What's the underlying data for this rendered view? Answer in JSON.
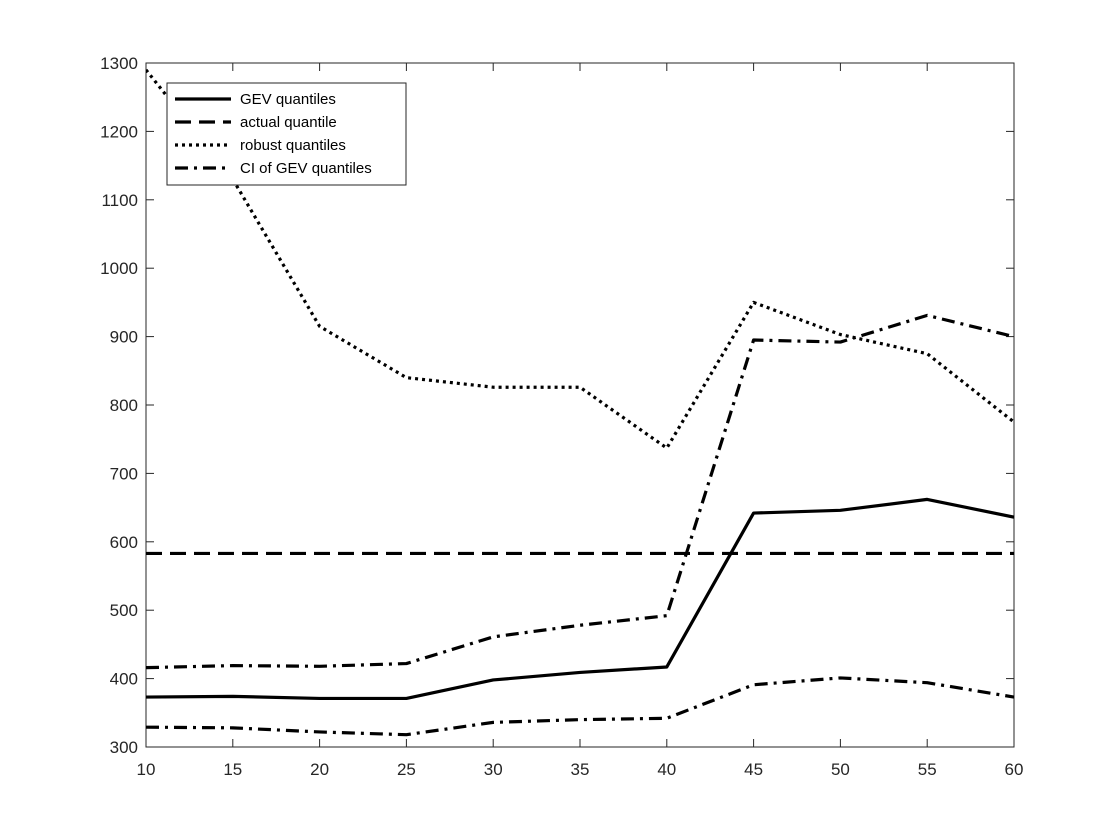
{
  "chart_data": {
    "type": "line",
    "title": "",
    "xlabel": "",
    "ylabel": "",
    "xlim": [
      10,
      60
    ],
    "ylim": [
      300,
      1300
    ],
    "xticks": [
      10,
      15,
      20,
      25,
      30,
      35,
      40,
      45,
      50,
      55,
      60
    ],
    "yticks": [
      300,
      400,
      500,
      600,
      700,
      800,
      900,
      1000,
      1100,
      1200,
      1300
    ],
    "grid": false,
    "legend_position": "top-left",
    "x": [
      10,
      15,
      20,
      25,
      30,
      35,
      40,
      45,
      50,
      55,
      60
    ],
    "series": [
      {
        "name": "GEV quantiles",
        "style": "solid",
        "color": "#000000",
        "values": [
          373,
          374,
          371,
          371,
          398,
          409,
          417,
          642,
          646,
          662,
          636
        ]
      },
      {
        "name": "actual quantile",
        "style": "dashed",
        "color": "#000000",
        "values": [
          583,
          583,
          583,
          583,
          583,
          583,
          583,
          583,
          583,
          583,
          583
        ]
      },
      {
        "name": "robust quantiles",
        "style": "dotted",
        "color": "#000000",
        "values": [
          1290,
          1130,
          915,
          840,
          826,
          826,
          737,
          950,
          903,
          875,
          775
        ]
      },
      {
        "name": "CI of GEV quantiles",
        "style": "dashdot",
        "color": "#000000",
        "values": [
          416,
          419,
          418,
          422,
          461,
          478,
          492,
          895,
          892,
          931,
          900
        ]
      },
      {
        "name": "",
        "style": "dashdot",
        "color": "#000000",
        "legend": false,
        "values": [
          329,
          328,
          322,
          318,
          336,
          340,
          342,
          391,
          401,
          394,
          373
        ]
      }
    ]
  }
}
